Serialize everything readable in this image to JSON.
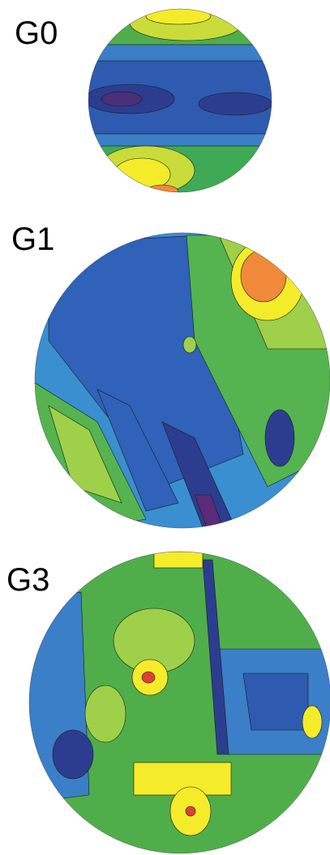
{
  "panels": [
    {
      "label": "G0"
    },
    {
      "label": "G1"
    },
    {
      "label": "G3"
    }
  ]
}
